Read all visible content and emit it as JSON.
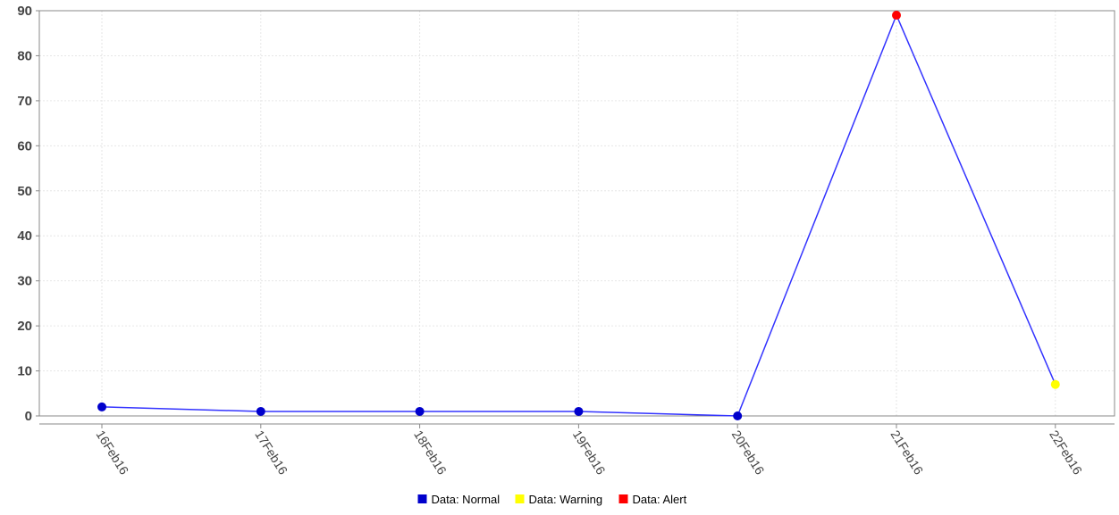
{
  "chart_data": {
    "type": "line",
    "x": [
      "16Feb16",
      "17Feb16",
      "18Feb16",
      "19Feb16",
      "20Feb16",
      "21Feb16",
      "22Feb16"
    ],
    "y": [
      2,
      1,
      1,
      1,
      0,
      89,
      7
    ],
    "point_status": [
      "normal",
      "normal",
      "normal",
      "normal",
      "normal",
      "alert",
      "warning"
    ],
    "line_color": "#3333ff",
    "status_colors": {
      "normal": "#0000cc",
      "warning": "#ffff00",
      "alert": "#ff0000"
    },
    "ylim": [
      0,
      90
    ],
    "yticks": [
      0,
      10,
      20,
      30,
      40,
      50,
      60,
      70,
      80,
      90
    ],
    "grid": true,
    "legend_position": "bottom-center",
    "legend": [
      {
        "label": "Data: Normal",
        "status": "normal"
      },
      {
        "label": "Data: Warning",
        "status": "warning"
      },
      {
        "label": "Data: Alert",
        "status": "alert"
      }
    ],
    "title": "",
    "xlabel": "",
    "ylabel": ""
  }
}
